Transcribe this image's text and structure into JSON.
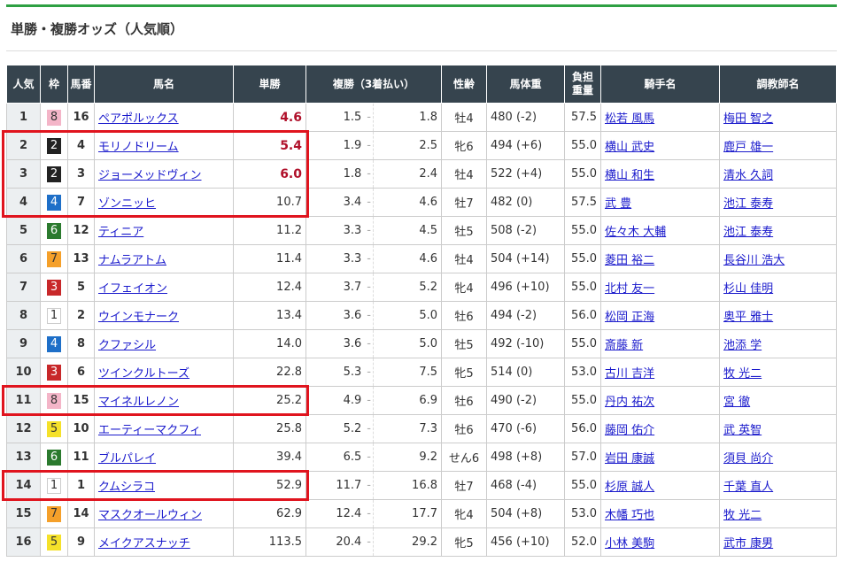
{
  "title": "単勝・複勝オッズ（人気順）",
  "colors": {
    "accent": "#2ea043",
    "header_bg": "#36444e",
    "highlight": "#e0141e",
    "hot_odds": "#b0102a",
    "waku": {
      "1": "#ffffff",
      "2": "#222222",
      "3": "#c8282a",
      "4": "#1e6fc8",
      "5": "#f5e12a",
      "6": "#2b7a2e",
      "7": "#f5a02a",
      "8": "#f4b5c8"
    }
  },
  "headers": [
    "人気",
    "枠",
    "馬番",
    "馬名",
    "単勝",
    "複勝（3着払い）",
    "性齢",
    "馬体重",
    "負担重量",
    "騎手名",
    "調教師名"
  ],
  "rows": [
    {
      "pop": "1",
      "waku": "8",
      "num": "16",
      "name": "ペアポルックス",
      "win": "4.6",
      "pmin": "1.5",
      "pmax": "1.8",
      "sex": "牡4",
      "weight": "480 (-2)",
      "load": "57.5",
      "jockey": "松若 風馬",
      "trainer": "梅田 智之",
      "hot": true
    },
    {
      "pop": "2",
      "waku": "2",
      "num": "4",
      "name": "モリノドリーム",
      "win": "5.4",
      "pmin": "1.9",
      "pmax": "2.5",
      "sex": "牝6",
      "weight": "494 (+6)",
      "load": "55.0",
      "jockey": "横山 武史",
      "trainer": "鹿戸 雄一",
      "hot": true,
      "highlighted": true
    },
    {
      "pop": "3",
      "waku": "2",
      "num": "3",
      "name": "ジョーメッドヴィン",
      "win": "6.0",
      "pmin": "1.8",
      "pmax": "2.4",
      "sex": "牡4",
      "weight": "522 (+4)",
      "load": "55.0",
      "jockey": "横山 和生",
      "trainer": "清水 久詞",
      "hot": true,
      "highlighted": true
    },
    {
      "pop": "4",
      "waku": "4",
      "num": "7",
      "name": "ゾンニッヒ",
      "win": "10.7",
      "pmin": "3.4",
      "pmax": "4.6",
      "sex": "牡7",
      "weight": "482 (0)",
      "load": "57.5",
      "jockey": "武 豊",
      "trainer": "池江 泰寿",
      "highlighted": true
    },
    {
      "pop": "5",
      "waku": "6",
      "num": "12",
      "name": "ティニア",
      "win": "11.2",
      "pmin": "3.3",
      "pmax": "4.5",
      "sex": "牡5",
      "weight": "508 (-2)",
      "load": "55.0",
      "jockey": "佐々木 大輔",
      "trainer": "池江 泰寿"
    },
    {
      "pop": "6",
      "waku": "7",
      "num": "13",
      "name": "ナムラアトム",
      "win": "11.4",
      "pmin": "3.3",
      "pmax": "4.6",
      "sex": "牡4",
      "weight": "504 (+14)",
      "load": "55.0",
      "jockey": "菱田 裕二",
      "trainer": "長谷川 浩大"
    },
    {
      "pop": "7",
      "waku": "3",
      "num": "5",
      "name": "イフェイオン",
      "win": "12.4",
      "pmin": "3.7",
      "pmax": "5.2",
      "sex": "牝4",
      "weight": "496 (+10)",
      "load": "55.0",
      "jockey": "北村 友一",
      "trainer": "杉山 佳明"
    },
    {
      "pop": "8",
      "waku": "1",
      "num": "2",
      "name": "ウインモナーク",
      "win": "13.4",
      "pmin": "3.6",
      "pmax": "5.0",
      "sex": "牡6",
      "weight": "494 (-2)",
      "load": "56.0",
      "jockey": "松岡 正海",
      "trainer": "奥平 雅士"
    },
    {
      "pop": "9",
      "waku": "4",
      "num": "8",
      "name": "クファシル",
      "win": "14.0",
      "pmin": "3.6",
      "pmax": "5.0",
      "sex": "牡5",
      "weight": "492 (-10)",
      "load": "55.0",
      "jockey": "斎藤 新",
      "trainer": "池添 学"
    },
    {
      "pop": "10",
      "waku": "3",
      "num": "6",
      "name": "ツインクルトーズ",
      "win": "22.8",
      "pmin": "5.3",
      "pmax": "7.5",
      "sex": "牝5",
      "weight": "514 (0)",
      "load": "53.0",
      "jockey": "古川 吉洋",
      "trainer": "牧 光二"
    },
    {
      "pop": "11",
      "waku": "8",
      "num": "15",
      "name": "マイネルレノン",
      "win": "25.2",
      "pmin": "4.9",
      "pmax": "6.9",
      "sex": "牡6",
      "weight": "490 (-2)",
      "load": "55.0",
      "jockey": "丹内 祐次",
      "trainer": "宮 徹",
      "highlighted": true
    },
    {
      "pop": "12",
      "waku": "5",
      "num": "10",
      "name": "エーティーマクフィ",
      "win": "25.8",
      "pmin": "5.2",
      "pmax": "7.3",
      "sex": "牡6",
      "weight": "470 (-6)",
      "load": "56.0",
      "jockey": "藤岡 佑介",
      "trainer": "武 英智"
    },
    {
      "pop": "13",
      "waku": "6",
      "num": "11",
      "name": "ブルパレイ",
      "win": "39.4",
      "pmin": "6.5",
      "pmax": "9.2",
      "sex": "せん6",
      "weight": "498 (+8)",
      "load": "57.0",
      "jockey": "岩田 康誠",
      "trainer": "須貝 尚介"
    },
    {
      "pop": "14",
      "waku": "1",
      "num": "1",
      "name": "クムシラコ",
      "win": "52.9",
      "pmin": "11.7",
      "pmax": "16.8",
      "sex": "牡7",
      "weight": "468 (-4)",
      "load": "55.0",
      "jockey": "杉原 誠人",
      "trainer": "千葉 直人",
      "highlighted": true
    },
    {
      "pop": "15",
      "waku": "7",
      "num": "14",
      "name": "マスクオールウィン",
      "win": "62.9",
      "pmin": "12.4",
      "pmax": "17.7",
      "sex": "牝4",
      "weight": "504 (+8)",
      "load": "53.0",
      "jockey": "木幡 巧也",
      "trainer": "牧 光二"
    },
    {
      "pop": "16",
      "waku": "5",
      "num": "9",
      "name": "メイクアスナッチ",
      "win": "113.5",
      "pmin": "20.4",
      "pmax": "29.2",
      "sex": "牝5",
      "weight": "456 (+10)",
      "load": "52.0",
      "jockey": "小林 美駒",
      "trainer": "武市 康男"
    }
  ]
}
